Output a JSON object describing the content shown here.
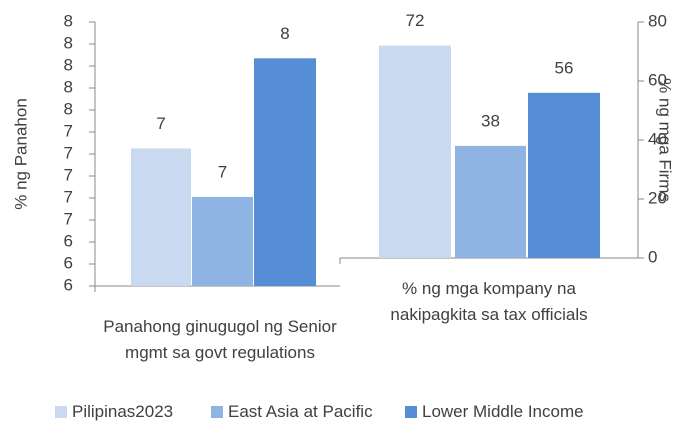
{
  "chart_data": [
    {
      "type": "bar",
      "y_label": "% ng Panahon",
      "categories": [
        "Panahong ginugugol ng Senior mgmt sa govt regulations"
      ],
      "ylim": [
        6,
        8.4
      ],
      "yticks": [
        {
          "value": 6,
          "label": "6"
        },
        {
          "value": 6.2,
          "label": "6"
        },
        {
          "value": 6.4,
          "label": "6"
        },
        {
          "value": 6.6,
          "label": "7"
        },
        {
          "value": 6.8,
          "label": "7"
        },
        {
          "value": 7,
          "label": "7"
        },
        {
          "value": 7.2,
          "label": "7"
        },
        {
          "value": 7.4,
          "label": "7"
        },
        {
          "value": 7.6,
          "label": "8"
        },
        {
          "value": 7.8,
          "label": "8"
        },
        {
          "value": 8,
          "label": "8"
        },
        {
          "value": 8.2,
          "label": "8"
        },
        {
          "value": 8.4,
          "label": "8"
        }
      ],
      "series": [
        {
          "name": "Pilipinas2023",
          "color": "#c9daf0",
          "values": [
            7.25
          ],
          "value_labels": [
            "7"
          ]
        },
        {
          "name": "East Asia at Pacific",
          "color": "#8fb4e3",
          "values": [
            6.81
          ],
          "value_labels": [
            "7"
          ]
        },
        {
          "name": "Lower Middle Income",
          "color": "#558ed5",
          "values": [
            8.07
          ],
          "value_labels": [
            "8"
          ]
        }
      ]
    },
    {
      "type": "bar",
      "y2_label": "% ng mga Firms",
      "categories": [
        "% ng mga kompany na nakipagkita sa tax officials"
      ],
      "y2lim": [
        0,
        80
      ],
      "y2ticks": [
        0,
        20,
        40,
        60,
        80
      ],
      "series": [
        {
          "color": "#c9daf0",
          "values": [
            72
          ],
          "axis": "y2"
        },
        {
          "color": "#8fb4e3",
          "values": [
            38
          ],
          "axis": "y2"
        },
        {
          "color": "#558ed5",
          "values": [
            56
          ],
          "axis": "y2"
        }
      ]
    }
  ]
}
